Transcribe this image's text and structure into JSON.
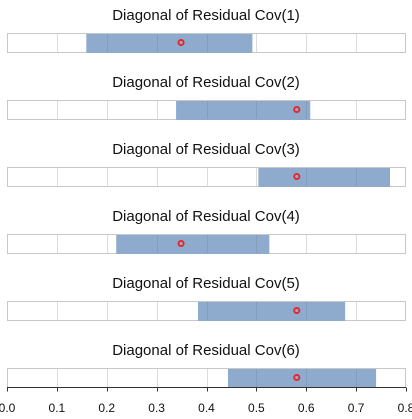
{
  "chart_data": {
    "type": "bar",
    "orientation": "horizontal-interval",
    "xlim": [
      0,
      0.8
    ],
    "xticks": [
      "0.0",
      "0.1",
      "0.2",
      "0.3",
      "0.4",
      "0.5",
      "0.6",
      "0.7",
      "0.8"
    ],
    "grid": true,
    "colors": {
      "interval": "#8eabcd",
      "point": "#e8242c"
    },
    "panels": [
      {
        "title": "Diagonal of Residual Cov(1)",
        "low": 0.159,
        "high": 0.492,
        "point": 0.349
      },
      {
        "title": "Diagonal of Residual Cov(2)",
        "low": 0.339,
        "high": 0.608,
        "point": 0.581
      },
      {
        "title": "Diagonal of Residual Cov(3)",
        "low": 0.504,
        "high": 0.768,
        "point": 0.581
      },
      {
        "title": "Diagonal of Residual Cov(4)",
        "low": 0.219,
        "high": 0.526,
        "point": 0.349
      },
      {
        "title": "Diagonal of Residual Cov(5)",
        "low": 0.383,
        "high": 0.678,
        "point": 0.581
      },
      {
        "title": "Diagonal of Residual Cov(6)",
        "low": 0.443,
        "high": 0.74,
        "point": 0.581
      }
    ]
  }
}
